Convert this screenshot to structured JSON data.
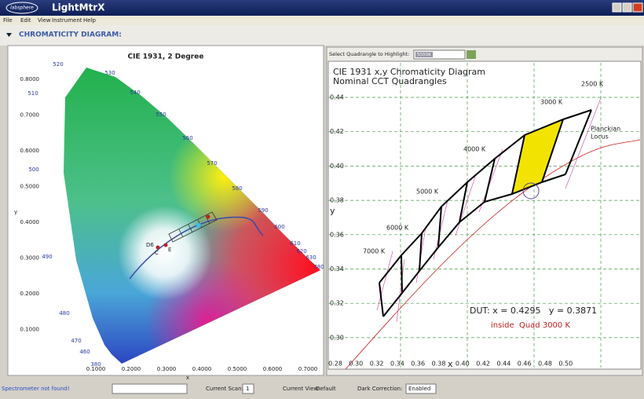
{
  "title_bar": {
    "logo": "labsphere",
    "app": "LightMtrX"
  },
  "menu": [
    "File",
    "Edit",
    "View",
    "Instrument",
    "Help"
  ],
  "section": "CHROMATICITY DIAGRAM:",
  "left": {
    "title": "CIE 1931, 2 Degree",
    "x_label": "x",
    "y_label": "y",
    "x_ticks": [
      "0.1000",
      "0.2000",
      "0.3000",
      "0.4000",
      "0.5000",
      "0.6000",
      "0.7000"
    ],
    "y_ticks": [
      "0.8000",
      "0.7000",
      "0.6000",
      "0.5000",
      "0.4000",
      "0.3000",
      "0.2000",
      "0.1000"
    ],
    "wavelengths": [
      "520",
      "530",
      "540",
      "550",
      "560",
      "570",
      "580",
      "590",
      "600",
      "610",
      "620",
      "630",
      "780",
      "380",
      "460",
      "470",
      "480",
      "490",
      "500",
      "510"
    ],
    "points": [
      "D6",
      "C",
      "E"
    ]
  },
  "right": {
    "select_label": "Select Quadrangle to Highlight:",
    "select_value": "3000K",
    "title": "CIE 1931 x,y Chromaticity Diagram",
    "subtitle": "Nominal CCT Quadrangles",
    "x_label": "x",
    "y_label": "y",
    "x_ticks": [
      "0.28",
      "0.30",
      "0.32",
      "0.34",
      "0.36",
      "0.38",
      "0.40",
      "0.42",
      "0.44",
      "0.46",
      "0.48",
      "0.50"
    ],
    "y_ticks": [
      "0.44",
      "0.42",
      "0.40",
      "0.38",
      "0.36",
      "0.34",
      "0.32",
      "0.30"
    ],
    "cct_labels": [
      "7000 K",
      "6000 K",
      "5000 K",
      "4000 K",
      "3000 K",
      "2500 K"
    ],
    "locus_label": [
      "Planckian",
      "Locus"
    ],
    "dut": "DUT: x = 0.4295   y = 0.3871",
    "result": "inside  Quad 3000 K"
  },
  "status_bar": {
    "message": "Spectrometer not found!",
    "scan_label": "Current Scan:",
    "scan_value": "1",
    "view_label": "Current View:",
    "view_value": "Default",
    "dark_label": "Dark Correction:",
    "dark_value": "Enabled"
  }
}
